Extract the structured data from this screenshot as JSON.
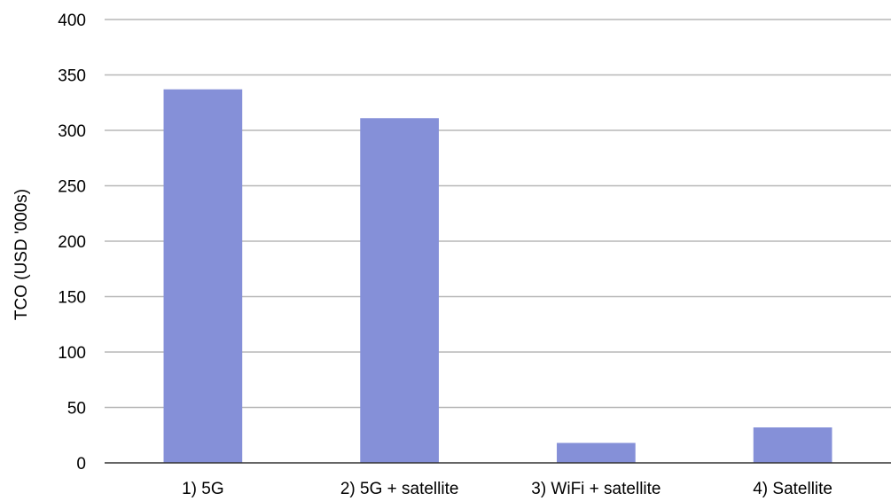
{
  "chart_data": {
    "type": "bar",
    "title": "",
    "xlabel": "",
    "ylabel": "TCO (USD '000s)",
    "ylim": [
      0,
      400
    ],
    "yticks": [
      0,
      50,
      100,
      150,
      200,
      250,
      300,
      350,
      400
    ],
    "categories": [
      "1) 5G",
      "2) 5G + satellite",
      "3) WiFi + satellite",
      "4) Satellite"
    ],
    "series": [
      {
        "values": [
          337,
          311,
          18,
          32
        ],
        "color": "#8590d8"
      }
    ],
    "grid": true,
    "legend": "none"
  }
}
